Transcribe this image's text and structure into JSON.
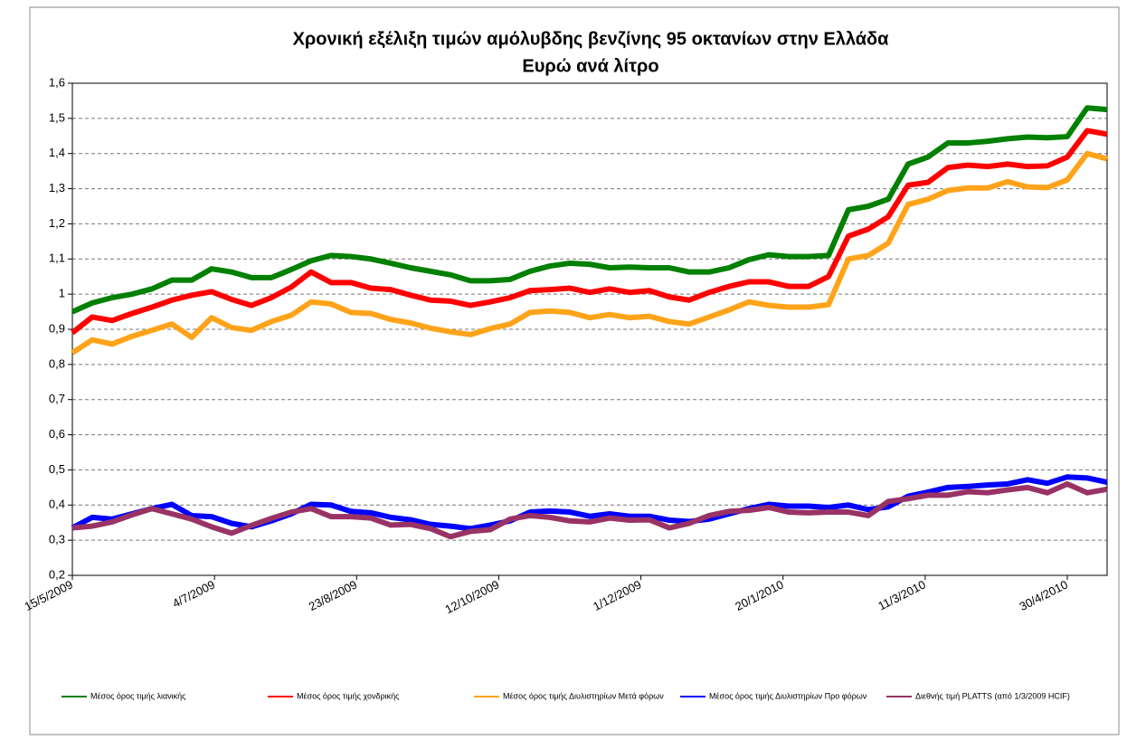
{
  "chart_data": {
    "type": "line",
    "title": "Χρονική εξέλιξη τιμών αμόλυβδης βενζίνης 95 οκτανίων στην Ελλάδα",
    "subtitle": "Ευρώ ανά λίτρο",
    "x": [
      "15/5/2009",
      "22/5/2009",
      "29/5/2009",
      "5/6/2009",
      "12/6/2009",
      "19/6/2009",
      "26/6/2009",
      "3/7/2009",
      "10/7/2009",
      "17/7/2009",
      "24/7/2009",
      "31/7/2009",
      "7/8/2009",
      "14/8/2009",
      "21/8/2009",
      "28/8/2009",
      "4/9/2009",
      "11/9/2009",
      "18/9/2009",
      "25/9/2009",
      "2/10/2009",
      "9/10/2009",
      "16/10/2009",
      "23/10/2009",
      "30/10/2009",
      "6/11/2009",
      "13/11/2009",
      "20/11/2009",
      "27/11/2009",
      "4/12/2009",
      "11/12/2009",
      "18/12/2009",
      "25/12/2009",
      "1/1/2010",
      "8/1/2010",
      "15/1/2010",
      "22/1/2010",
      "29/1/2010",
      "5/2/2010",
      "12/2/2010",
      "19/2/2010",
      "26/2/2010",
      "5/3/2010",
      "12/3/2010",
      "19/3/2010",
      "26/3/2010",
      "2/4/2010",
      "9/4/2010",
      "16/4/2010",
      "23/4/2010",
      "30/4/2010",
      "7/5/2010",
      "14/5/2010"
    ],
    "series": [
      {
        "name": "Μέσος όρος τιμής λιανικής",
        "color": "#008000",
        "values": [
          0.95,
          0.975,
          0.99,
          1.0,
          1.015,
          1.04,
          1.04,
          1.072,
          1.063,
          1.047,
          1.047,
          1.07,
          1.095,
          1.11,
          1.107,
          1.1,
          1.088,
          1.075,
          1.065,
          1.055,
          1.038,
          1.038,
          1.042,
          1.065,
          1.08,
          1.088,
          1.085,
          1.075,
          1.077,
          1.075,
          1.075,
          1.063,
          1.063,
          1.075,
          1.098,
          1.112,
          1.107,
          1.107,
          1.11,
          1.24,
          1.25,
          1.27,
          1.37,
          1.39,
          1.43,
          1.43,
          1.435,
          1.442,
          1.447,
          1.445,
          1.448,
          1.53,
          1.525
        ]
      },
      {
        "name": "Μέσος όρος τιμής χονδρικής",
        "color": "#ff0000",
        "values": [
          0.89,
          0.935,
          0.925,
          0.945,
          0.963,
          0.983,
          0.997,
          1.007,
          0.985,
          0.968,
          0.99,
          1.02,
          1.063,
          1.033,
          1.033,
          1.017,
          1.013,
          0.997,
          0.983,
          0.98,
          0.968,
          0.978,
          0.99,
          1.01,
          1.013,
          1.017,
          1.005,
          1.015,
          1.005,
          1.01,
          0.992,
          0.983,
          1.005,
          1.022,
          1.035,
          1.035,
          1.022,
          1.022,
          1.05,
          1.165,
          1.185,
          1.22,
          1.31,
          1.318,
          1.36,
          1.367,
          1.363,
          1.37,
          1.363,
          1.365,
          1.39,
          1.465,
          1.455
        ]
      },
      {
        "name": "Μέσος όρος τιμής Διυλιστηρίων Μετά φόρων",
        "color": "#ffa31a",
        "values": [
          0.833,
          0.87,
          0.858,
          0.88,
          0.897,
          0.915,
          0.877,
          0.933,
          0.905,
          0.897,
          0.922,
          0.94,
          0.978,
          0.972,
          0.948,
          0.945,
          0.928,
          0.918,
          0.903,
          0.893,
          0.885,
          0.902,
          0.915,
          0.948,
          0.952,
          0.948,
          0.933,
          0.942,
          0.933,
          0.937,
          0.922,
          0.915,
          0.935,
          0.955,
          0.978,
          0.968,
          0.963,
          0.963,
          0.97,
          1.1,
          1.11,
          1.145,
          1.255,
          1.27,
          1.295,
          1.302,
          1.302,
          1.32,
          1.305,
          1.303,
          1.325,
          1.4,
          1.385
        ]
      },
      {
        "name": "Μέσος όρος τιμής Διυλιστηρίων Προ φόρων",
        "color": "#0000ff",
        "values": [
          0.335,
          0.365,
          0.36,
          0.375,
          0.39,
          0.402,
          0.37,
          0.367,
          0.348,
          0.338,
          0.355,
          0.375,
          0.402,
          0.4,
          0.382,
          0.378,
          0.365,
          0.358,
          0.345,
          0.34,
          0.333,
          0.343,
          0.355,
          0.38,
          0.383,
          0.38,
          0.368,
          0.375,
          0.368,
          0.368,
          0.357,
          0.353,
          0.36,
          0.375,
          0.39,
          0.402,
          0.397,
          0.397,
          0.393,
          0.4,
          0.387,
          0.395,
          0.425,
          0.437,
          0.45,
          0.453,
          0.457,
          0.46,
          0.472,
          0.462,
          0.48,
          0.477,
          0.465
        ]
      },
      {
        "name": "Διεθνής τιμή PLATTS (από 1/3/2009 HCIF)",
        "color": "#993366",
        "values": [
          0.335,
          0.34,
          0.352,
          0.372,
          0.39,
          0.375,
          0.36,
          0.338,
          0.32,
          0.342,
          0.362,
          0.38,
          0.39,
          0.367,
          0.367,
          0.363,
          0.343,
          0.345,
          0.333,
          0.31,
          0.325,
          0.33,
          0.36,
          0.37,
          0.365,
          0.355,
          0.352,
          0.363,
          0.357,
          0.358,
          0.335,
          0.348,
          0.37,
          0.382,
          0.385,
          0.393,
          0.38,
          0.378,
          0.38,
          0.38,
          0.37,
          0.41,
          0.418,
          0.428,
          0.428,
          0.438,
          0.435,
          0.443,
          0.45,
          0.435,
          0.46,
          0.435,
          0.445
        ]
      }
    ],
    "xlim": [
      "15/5/2009",
      "14/5/2010"
    ],
    "xticks": [
      "15/5/2009",
      "4/7/2009",
      "23/8/2009",
      "12/10/2009",
      "1/12/2009",
      "20/1/2010",
      "11/3/2010",
      "30/4/2010"
    ],
    "ylim": [
      0.2,
      1.6
    ],
    "yticks": [
      {
        "value": 0.2,
        "label": "0,2"
      },
      {
        "value": 0.3,
        "label": "0,3"
      },
      {
        "value": 0.4,
        "label": "0,4"
      },
      {
        "value": 0.5,
        "label": "0,5"
      },
      {
        "value": 0.6,
        "label": "0,6"
      },
      {
        "value": 0.7,
        "label": "0,7"
      },
      {
        "value": 0.8,
        "label": "0,8"
      },
      {
        "value": 0.9,
        "label": "0,9"
      },
      1,
      {
        "value": 1.1,
        "label": "1,1"
      },
      {
        "value": 1.2,
        "label": "1,2"
      },
      {
        "value": 1.3,
        "label": "1,3"
      },
      {
        "value": 1.4,
        "label": "1,4"
      },
      {
        "value": 1.5,
        "label": "1,5"
      },
      {
        "value": 1.6,
        "label": "1,6"
      }
    ],
    "grid": true,
    "legend": "bottom"
  }
}
